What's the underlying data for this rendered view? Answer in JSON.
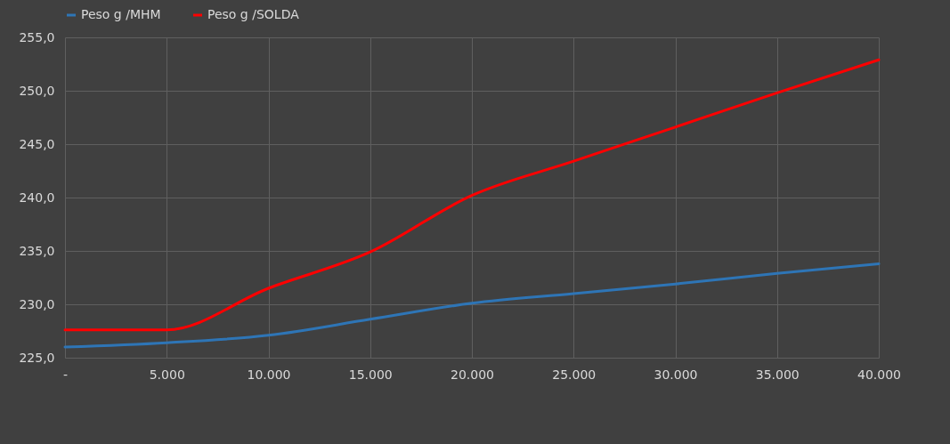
{
  "chart_data": {
    "type": "line",
    "x": [
      0,
      5000,
      10000,
      15000,
      20000,
      25000,
      30000,
      35000,
      40000
    ],
    "series": [
      {
        "name": "Peso g /MHM",
        "color": "#2e75b6",
        "values": [
          226.0,
          226.4,
          227.1,
          228.6,
          230.1,
          231.0,
          231.9,
          232.9,
          233.8
        ]
      },
      {
        "name": "Peso g /SOLDA",
        "color": "#ff0000",
        "values": [
          227.6,
          227.6,
          231.5,
          234.9,
          240.2,
          243.4,
          246.6,
          249.8,
          252.9
        ]
      }
    ],
    "xlim": [
      0,
      40000
    ],
    "xticks": [
      {
        "value": 0,
        "label": "-"
      },
      {
        "value": 5000,
        "label": "5.000"
      },
      {
        "value": 10000,
        "label": "10.000"
      },
      {
        "value": 15000,
        "label": "15.000"
      },
      {
        "value": 20000,
        "label": "20.000"
      },
      {
        "value": 25000,
        "label": "25.000"
      },
      {
        "value": 30000,
        "label": "30.000"
      },
      {
        "value": 35000,
        "label": "35.000"
      },
      {
        "value": 40000,
        "label": "40.000"
      }
    ],
    "ylim": [
      225,
      255
    ],
    "yticks": [
      {
        "value": 225,
        "label": "225,0"
      },
      {
        "value": 230,
        "label": "230,0"
      },
      {
        "value": 235,
        "label": "235,0"
      },
      {
        "value": 240,
        "label": "240,0"
      },
      {
        "value": 245,
        "label": "245,0"
      },
      {
        "value": 250,
        "label": "250,0"
      },
      {
        "value": 255,
        "label": "255,0"
      }
    ],
    "grid": true,
    "legend": "top",
    "marker": "none",
    "line_style": "solid"
  }
}
